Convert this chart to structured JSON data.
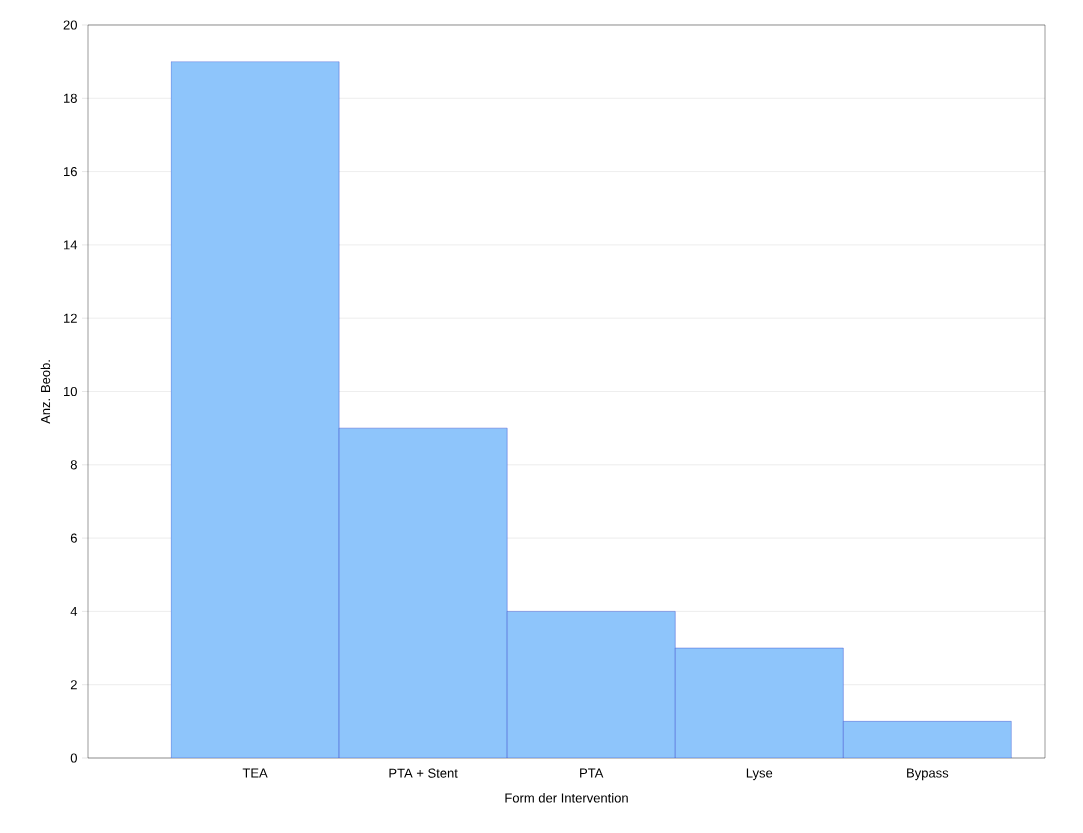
{
  "chart_data": {
    "type": "bar",
    "xlabel": "Form der Intervention",
    "ylabel": "Anz. Beob.",
    "categories": [
      "TEA",
      "PTA + Stent",
      "PTA",
      "Lyse",
      "Bypass"
    ],
    "values": [
      19,
      9,
      4,
      3,
      1
    ],
    "color": "#8ec5fb",
    "ylim": [
      0,
      20
    ],
    "yticks": [
      0,
      2,
      4,
      6,
      8,
      10,
      12,
      14,
      16,
      18,
      20
    ],
    "grid": "y"
  }
}
